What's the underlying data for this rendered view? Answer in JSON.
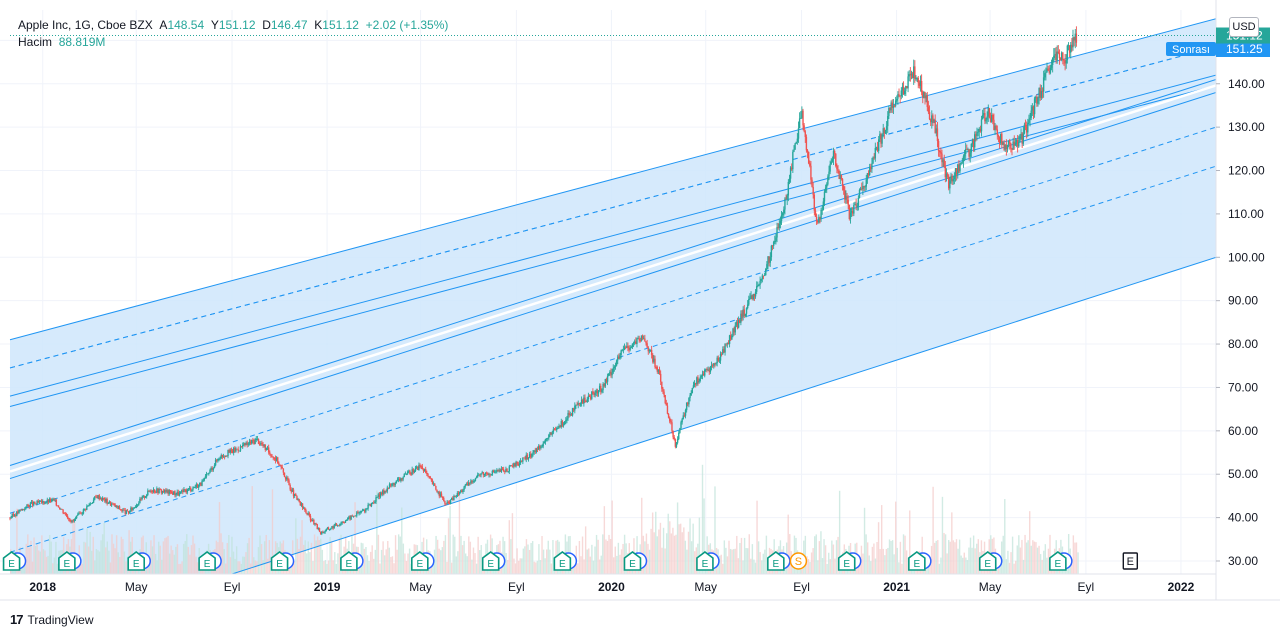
{
  "legend": {
    "symbol": "Apple Inc, 1G, Cboe BZX",
    "open_label": "A",
    "open": "148.54",
    "high_label": "Y",
    "high": "151.12",
    "low_label": "D",
    "low": "146.47",
    "close_label": "K",
    "close": "151.12",
    "change": "+2.02 (+1.35%)",
    "volume_label": "Hacim",
    "volume": "88.819M"
  },
  "currency": "USD",
  "price_tags": {
    "after_label": "Sonrası",
    "after_value": "151.25",
    "last_value": "151.12"
  },
  "brand": "TradingView",
  "colors": {
    "up": "#26a69a",
    "down": "#ef5350",
    "channel_line": "#2196f3",
    "channel_fill": "#cfe6fb",
    "after_tag": "#2196f3",
    "last_tag": "#26a69a"
  },
  "chart_data": {
    "type": "candlestick",
    "title": "Apple Inc, 1G, Cboe BZX",
    "y_ticks": [
      "30.00",
      "40.00",
      "50.00",
      "60.00",
      "70.00",
      "80.00",
      "90.00",
      "100.00",
      "110.00",
      "120.00",
      "130.00",
      "140.00",
      "150.00"
    ],
    "x_ticks": [
      "2018",
      "May",
      "Eyl",
      "2019",
      "May",
      "Eyl",
      "2020",
      "May",
      "Eyl",
      "2021",
      "May",
      "Eyl",
      "2022"
    ],
    "ylim": [
      27,
      157
    ],
    "xlim": [
      "2017-11-20",
      "2022-02-15"
    ],
    "scale": "linear",
    "price_series": [
      {
        "date": "2017-11-20",
        "close": 40
      },
      {
        "date": "2017-12-15",
        "close": 43
      },
      {
        "date": "2018-01-15",
        "close": 44
      },
      {
        "date": "2018-02-08",
        "close": 39
      },
      {
        "date": "2018-03-12",
        "close": 45
      },
      {
        "date": "2018-04-20",
        "close": 41
      },
      {
        "date": "2018-05-20",
        "close": 46.5
      },
      {
        "date": "2018-06-25",
        "close": 45.5
      },
      {
        "date": "2018-07-25",
        "close": 48
      },
      {
        "date": "2018-08-15",
        "close": 54
      },
      {
        "date": "2018-09-10",
        "close": 56
      },
      {
        "date": "2018-10-03",
        "close": 58
      },
      {
        "date": "2018-10-30",
        "close": 53
      },
      {
        "date": "2018-11-20",
        "close": 45
      },
      {
        "date": "2018-12-24",
        "close": 36.5
      },
      {
        "date": "2019-01-15",
        "close": 38.5
      },
      {
        "date": "2019-02-20",
        "close": 42
      },
      {
        "date": "2019-03-20",
        "close": 47
      },
      {
        "date": "2019-05-01",
        "close": 52
      },
      {
        "date": "2019-06-03",
        "close": 43
      },
      {
        "date": "2019-07-15",
        "close": 50
      },
      {
        "date": "2019-08-20",
        "close": 51
      },
      {
        "date": "2019-09-20",
        "close": 54.5
      },
      {
        "date": "2019-10-20",
        "close": 60
      },
      {
        "date": "2019-11-20",
        "close": 66
      },
      {
        "date": "2019-12-20",
        "close": 70
      },
      {
        "date": "2020-01-17",
        "close": 79
      },
      {
        "date": "2020-02-12",
        "close": 81.5
      },
      {
        "date": "2020-03-02",
        "close": 73
      },
      {
        "date": "2020-03-23",
        "close": 57
      },
      {
        "date": "2020-04-15",
        "close": 71
      },
      {
        "date": "2020-05-15",
        "close": 76
      },
      {
        "date": "2020-06-15",
        "close": 86
      },
      {
        "date": "2020-07-15",
        "close": 96
      },
      {
        "date": "2020-08-10",
        "close": 112
      },
      {
        "date": "2020-09-01",
        "close": 134
      },
      {
        "date": "2020-09-21",
        "close": 107
      },
      {
        "date": "2020-10-12",
        "close": 124
      },
      {
        "date": "2020-11-03",
        "close": 109
      },
      {
        "date": "2020-12-01",
        "close": 122
      },
      {
        "date": "2020-12-28",
        "close": 136
      },
      {
        "date": "2021-01-26",
        "close": 143
      },
      {
        "date": "2021-02-20",
        "close": 129
      },
      {
        "date": "2021-03-08",
        "close": 117
      },
      {
        "date": "2021-04-05",
        "close": 125
      },
      {
        "date": "2021-04-28",
        "close": 134
      },
      {
        "date": "2021-05-20",
        "close": 125
      },
      {
        "date": "2021-06-10",
        "close": 127
      },
      {
        "date": "2021-07-01",
        "close": 137
      },
      {
        "date": "2021-07-22",
        "close": 146
      },
      {
        "date": "2021-08-05",
        "close": 146
      },
      {
        "date": "2021-08-20",
        "close": 151
      }
    ],
    "horizontal_line": {
      "value": 151.12,
      "style": "dotted"
    },
    "channel": {
      "description": "pitchfork-like parallel channel",
      "upper": [
        [
          "2017-11-20",
          81
        ],
        [
          "2022-02-15",
          155
        ]
      ],
      "median_solid_a": [
        [
          "2017-11-20",
          68
        ],
        [
          "2022-02-15",
          142
        ]
      ],
      "median_solid_b": [
        [
          "2017-11-20",
          49
        ],
        [
          "2022-02-15",
          138
        ]
      ],
      "lower": [
        [
          "2018-09-01",
          27
        ],
        [
          "2022-02-15",
          100
        ]
      ]
    },
    "events": [
      {
        "date": "2017-11-22",
        "type": "E"
      },
      {
        "date": "2018-02-01",
        "type": "E"
      },
      {
        "date": "2018-05-01",
        "type": "E"
      },
      {
        "date": "2018-07-31",
        "type": "E"
      },
      {
        "date": "2018-11-01",
        "type": "E"
      },
      {
        "date": "2019-01-29",
        "type": "E"
      },
      {
        "date": "2019-04-30",
        "type": "E"
      },
      {
        "date": "2019-07-30",
        "type": "E"
      },
      {
        "date": "2019-10-30",
        "type": "E"
      },
      {
        "date": "2020-01-28",
        "type": "E"
      },
      {
        "date": "2020-04-30",
        "type": "E"
      },
      {
        "date": "2020-07-30",
        "type": "E"
      },
      {
        "date": "2020-08-28",
        "type": "S"
      },
      {
        "date": "2020-10-29",
        "type": "E"
      },
      {
        "date": "2021-01-27",
        "type": "E"
      },
      {
        "date": "2021-04-28",
        "type": "E"
      },
      {
        "date": "2021-07-27",
        "type": "E"
      },
      {
        "date": "2021-10-28",
        "type": "E"
      }
    ]
  }
}
